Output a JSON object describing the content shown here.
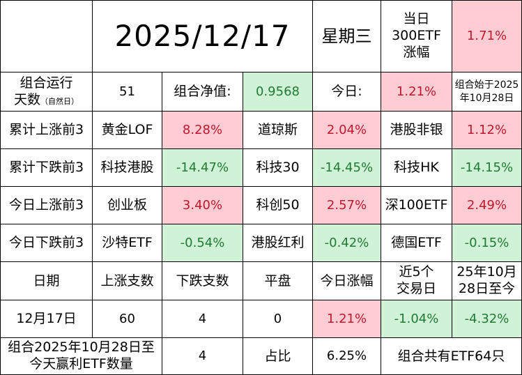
{
  "header": {
    "date": "2025/12/17",
    "weekday": "星期三",
    "etf_label_line1": "当日",
    "etf_label_line2": "300ETF",
    "etf_label_line3": "涨幅",
    "etf_value": "1.71%"
  },
  "summary": {
    "run_days_label": "组合运行",
    "run_days_label2": "天数",
    "run_days_note": "（自然日）",
    "run_days_value": "51",
    "nav_label": "组合净值:",
    "nav_value": "0.9568",
    "today_label": "今日:",
    "today_value": "1.21%",
    "start_note_line1": "组合始于2025",
    "start_note_line2": "年10月28日"
  },
  "rank_rows": [
    {
      "label": "累计上涨前3",
      "items": [
        {
          "name": "黄金LOF",
          "value": "8.28%",
          "tone": "red"
        },
        {
          "name": "道琼斯",
          "value": "2.04%",
          "tone": "red"
        },
        {
          "name": "港股非银",
          "value": "1.12%",
          "tone": "red"
        }
      ]
    },
    {
      "label": "累计下跌前3",
      "items": [
        {
          "name": "科技港股",
          "value": "-14.47%",
          "tone": "green"
        },
        {
          "name": "科技30",
          "value": "-14.45%",
          "tone": "green"
        },
        {
          "name": "科技HK",
          "value": "-14.15%",
          "tone": "green"
        }
      ]
    },
    {
      "label": "今日上涨前3",
      "items": [
        {
          "name": "创业板",
          "value": "3.40%",
          "tone": "red"
        },
        {
          "name": "科创50",
          "value": "2.57%",
          "tone": "red"
        },
        {
          "name": "深100ETF",
          "value": "2.49%",
          "tone": "red"
        }
      ]
    },
    {
      "label": "今日下跌前3",
      "items": [
        {
          "name": "沙特ETF",
          "value": "-0.54%",
          "tone": "green"
        },
        {
          "name": "港股红利",
          "value": "-0.42%",
          "tone": "green"
        },
        {
          "name": "德国ETF",
          "value": "-0.15%",
          "tone": "green"
        }
      ]
    }
  ],
  "stats_header": {
    "date": "日期",
    "up": "上涨支数",
    "down": "下跌支数",
    "flat": "平盘",
    "today_change": "今日涨幅",
    "last5_line1": "近5个",
    "last5_line2": "交易日",
    "since_line1": "25年10月",
    "since_line2": "28日至今"
  },
  "stats_row": {
    "date": "12月17日",
    "up": "60",
    "down": "4",
    "flat": "0",
    "today_change": "1.21%",
    "last5": "-1.04%",
    "since": "-4.32%"
  },
  "footer": {
    "label_line1": "组合2025年10月28日至",
    "label_line2": "今天赢利ETF数量",
    "count": "4",
    "ratio_label": "占比",
    "ratio_value": "6.25%",
    "total_text": "组合共有ETF64只"
  }
}
